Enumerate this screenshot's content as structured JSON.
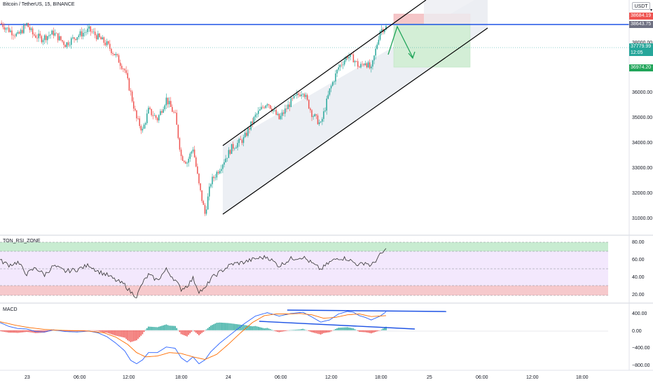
{
  "header": {
    "title": "Bitcoin / TetherUS, 15, BINANCE",
    "currency": "USDT"
  },
  "colors": {
    "up": "#26a69a",
    "down": "#ef5350",
    "blue_line": "#1e53e5",
    "price_line": "#26a69a",
    "channel_fill": "#eceff4",
    "stop_zone": "#f5c6c8",
    "target_zone": "#d3eed6",
    "rsi_zone": "#f3e8fd",
    "rsi_upper": "#c8ecd1",
    "rsi_lower": "#f6c9cc",
    "macd_line": "#2962ff",
    "signal_line": "#ff6d00",
    "arrow": "#21a55a"
  },
  "price_pane": {
    "y_ticks": [
      "38000.00",
      "37000.00",
      "36000.00",
      "35000.00",
      "34000.00",
      "33000.00",
      "32000.00",
      "31000.00"
    ],
    "tags": [
      {
        "value": "38684.19",
        "color": "#ef5350"
      },
      {
        "value": "38643.75",
        "color": "#6e7082"
      },
      {
        "value": "37779.99",
        "sub": "12:05",
        "color": "#26a69a"
      },
      {
        "value": "36974.20",
        "color": "#26a69a"
      }
    ]
  },
  "rsi_pane": {
    "label": "TON_RSI_ZONE",
    "y_ticks": [
      "80.00",
      "60.00",
      "40.00",
      "20.00"
    ]
  },
  "macd_pane": {
    "label": "MACD",
    "y_ticks": [
      "400.00",
      "0.00",
      "−400.00",
      "−800.00"
    ]
  },
  "time_axis": [
    "23",
    "06:00",
    "12:00",
    "18:00",
    "24",
    "06:00",
    "12:00",
    "18:00",
    "25",
    "06:00",
    "12:00",
    "18:00"
  ],
  "chart_data": [
    {
      "type": "candlestick",
      "title": "Bitcoin / TetherUS, 15, BINANCE",
      "x_labels": [
        "23",
        "06:00",
        "12:00",
        "18:00",
        "24",
        "06:00",
        "12:00",
        "18:00"
      ],
      "ylim": [
        30700,
        38550
      ],
      "close_path": [
        [
          0,
          37950
        ],
        [
          6,
          37700
        ],
        [
          12,
          37500
        ],
        [
          18,
          37900
        ],
        [
          22,
          37550
        ],
        [
          28,
          37400
        ],
        [
          36,
          37600
        ],
        [
          44,
          37200
        ],
        [
          52,
          37500
        ],
        [
          60,
          37700
        ],
        [
          66,
          37450
        ],
        [
          72,
          37200
        ],
        [
          78,
          36800
        ],
        [
          84,
          36300
        ],
        [
          88,
          35500
        ],
        [
          92,
          34600
        ],
        [
          96,
          34200
        ],
        [
          100,
          34900
        ],
        [
          106,
          34600
        ],
        [
          112,
          35300
        ],
        [
          118,
          34700
        ],
        [
          122,
          33300
        ],
        [
          126,
          33100
        ],
        [
          130,
          33600
        ],
        [
          134,
          32300
        ],
        [
          138,
          31300
        ],
        [
          142,
          32400
        ],
        [
          148,
          32900
        ],
        [
          156,
          33600
        ],
        [
          164,
          33900
        ],
        [
          172,
          34700
        ],
        [
          180,
          35200
        ],
        [
          188,
          34600
        ],
        [
          196,
          35200
        ],
        [
          204,
          35600
        ],
        [
          210,
          34800
        ],
        [
          216,
          34400
        ],
        [
          222,
          35600
        ],
        [
          228,
          36400
        ],
        [
          234,
          36800
        ],
        [
          238,
          36700
        ],
        [
          242,
          36400
        ],
        [
          246,
          36600
        ],
        [
          250,
          36300
        ],
        [
          256,
          37700
        ],
        [
          260,
          37800
        ]
      ],
      "horizontal_line": 38643.75,
      "last_price": 37779.99,
      "target": 36974.2,
      "stop": 38684.19
    },
    {
      "type": "line",
      "title": "TON_RSI_ZONE",
      "ylim": [
        15,
        85
      ],
      "zones": {
        "upper": [
          70,
          80
        ],
        "middle": [
          30,
          70
        ],
        "lower": [
          20,
          30
        ]
      },
      "values": [
        [
          0,
          60
        ],
        [
          6,
          55
        ],
        [
          12,
          58
        ],
        [
          18,
          45
        ],
        [
          24,
          52
        ],
        [
          30,
          44
        ],
        [
          36,
          54
        ],
        [
          44,
          48
        ],
        [
          52,
          50
        ],
        [
          60,
          55
        ],
        [
          66,
          48
        ],
        [
          72,
          44
        ],
        [
          78,
          38
        ],
        [
          84,
          33
        ],
        [
          88,
          25
        ],
        [
          92,
          20
        ],
        [
          96,
          35
        ],
        [
          100,
          44
        ],
        [
          106,
          38
        ],
        [
          112,
          50
        ],
        [
          118,
          38
        ],
        [
          122,
          28
        ],
        [
          126,
          32
        ],
        [
          130,
          40
        ],
        [
          134,
          26
        ],
        [
          138,
          28
        ],
        [
          142,
          40
        ],
        [
          148,
          47
        ],
        [
          156,
          56
        ],
        [
          164,
          58
        ],
        [
          172,
          62
        ],
        [
          180,
          64
        ],
        [
          188,
          54
        ],
        [
          196,
          62
        ],
        [
          204,
          64
        ],
        [
          210,
          57
        ],
        [
          216,
          50
        ],
        [
          222,
          58
        ],
        [
          228,
          63
        ],
        [
          234,
          62
        ],
        [
          238,
          58
        ],
        [
          242,
          55
        ],
        [
          246,
          58
        ],
        [
          250,
          54
        ],
        [
          256,
          66
        ],
        [
          260,
          72
        ]
      ]
    },
    {
      "type": "line",
      "title": "MACD",
      "ylim": [
        -900,
        600
      ],
      "macd": [
        [
          0,
          180
        ],
        [
          6,
          90
        ],
        [
          12,
          40
        ],
        [
          18,
          30
        ],
        [
          24,
          -30
        ],
        [
          30,
          -40
        ],
        [
          36,
          10
        ],
        [
          44,
          -30
        ],
        [
          52,
          -40
        ],
        [
          60,
          -20
        ],
        [
          66,
          -60
        ],
        [
          72,
          -150
        ],
        [
          78,
          -300
        ],
        [
          84,
          -480
        ],
        [
          88,
          -700
        ],
        [
          92,
          -780
        ],
        [
          96,
          -690
        ],
        [
          100,
          -520
        ],
        [
          106,
          -520
        ],
        [
          112,
          -390
        ],
        [
          118,
          -420
        ],
        [
          122,
          -640
        ],
        [
          126,
          -740
        ],
        [
          130,
          -620
        ],
        [
          134,
          -780
        ],
        [
          138,
          -690
        ],
        [
          142,
          -500
        ],
        [
          148,
          -300
        ],
        [
          156,
          -80
        ],
        [
          164,
          140
        ],
        [
          172,
          330
        ],
        [
          180,
          410
        ],
        [
          188,
          330
        ],
        [
          196,
          390
        ],
        [
          204,
          420
        ],
        [
          210,
          310
        ],
        [
          216,
          190
        ],
        [
          222,
          240
        ],
        [
          228,
          380
        ],
        [
          234,
          440
        ],
        [
          238,
          420
        ],
        [
          242,
          340
        ],
        [
          246,
          300
        ],
        [
          250,
          240
        ],
        [
          256,
          330
        ],
        [
          260,
          430
        ]
      ],
      "signal": [
        [
          0,
          200
        ],
        [
          10,
          120
        ],
        [
          20,
          60
        ],
        [
          30,
          20
        ],
        [
          40,
          0
        ],
        [
          50,
          -10
        ],
        [
          60,
          -20
        ],
        [
          70,
          -60
        ],
        [
          78,
          -160
        ],
        [
          86,
          -330
        ],
        [
          92,
          -520
        ],
        [
          98,
          -620
        ],
        [
          106,
          -600
        ],
        [
          114,
          -520
        ],
        [
          122,
          -540
        ],
        [
          130,
          -620
        ],
        [
          138,
          -680
        ],
        [
          146,
          -560
        ],
        [
          154,
          -320
        ],
        [
          162,
          -60
        ],
        [
          170,
          180
        ],
        [
          178,
          340
        ],
        [
          186,
          380
        ],
        [
          194,
          380
        ],
        [
          202,
          390
        ],
        [
          210,
          360
        ],
        [
          218,
          280
        ],
        [
          226,
          300
        ],
        [
          234,
          360
        ],
        [
          242,
          380
        ],
        [
          250,
          320
        ],
        [
          260,
          340
        ]
      ]
    }
  ]
}
